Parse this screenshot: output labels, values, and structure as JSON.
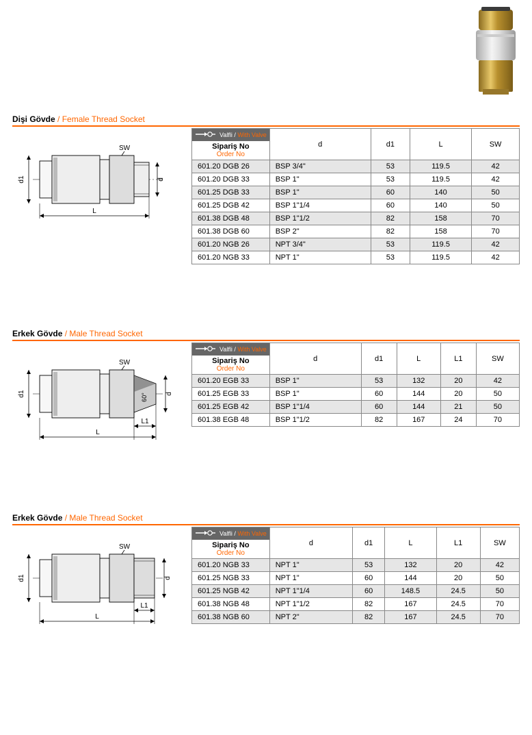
{
  "image_svg": "present",
  "sections": [
    {
      "title_tr": "Dişi Gövde",
      "title_en": "Female Thread Socket",
      "valve_label_tr": "Valfli",
      "valve_label_en": "With Valve",
      "order_label_tr": "Sipariş No",
      "order_label_en": "Order No",
      "columns": [
        "d",
        "d1",
        "L",
        "SW"
      ],
      "diagram_type": "female",
      "rows": [
        {
          "order": "601.20 DGB 26",
          "d": "BSP 3/4\"",
          "cells": [
            "53",
            "119.5",
            "42"
          ],
          "shade": true
        },
        {
          "order": "601.20 DGB 33",
          "d": "BSP 1\"",
          "cells": [
            "53",
            "119.5",
            "42"
          ],
          "shade": false
        },
        {
          "order": "601.25 DGB 33",
          "d": "BSP 1\"",
          "cells": [
            "60",
            "140",
            "50"
          ],
          "shade": true
        },
        {
          "order": "601.25 DGB 42",
          "d": "BSP 1\"1/4",
          "cells": [
            "60",
            "140",
            "50"
          ],
          "shade": false
        },
        {
          "order": "601.38 DGB 48",
          "d": "BSP 1\"1/2",
          "cells": [
            "82",
            "158",
            "70"
          ],
          "shade": true
        },
        {
          "order": "601.38 DGB 60",
          "d": "BSP 2\"",
          "cells": [
            "82",
            "158",
            "70"
          ],
          "shade": false
        },
        {
          "order": "601.20 NGB 26",
          "d": "NPT 3/4\"",
          "cells": [
            "53",
            "119.5",
            "42"
          ],
          "shade": true
        },
        {
          "order": "601.20 NGB 33",
          "d": "NPT 1\"",
          "cells": [
            "53",
            "119.5",
            "42"
          ],
          "shade": false
        }
      ]
    },
    {
      "title_tr": "Erkek Gövde",
      "title_en": "Male Thread Socket",
      "valve_label_tr": "Valfli",
      "valve_label_en": "With Valve",
      "order_label_tr": "Sipariş No",
      "order_label_en": "Order No",
      "columns": [
        "d",
        "d1",
        "L",
        "L1",
        "SW"
      ],
      "diagram_type": "male60",
      "rows": [
        {
          "order": "601.20 EGB 33",
          "d": "BSP 1\"",
          "cells": [
            "53",
            "132",
            "20",
            "42"
          ],
          "shade": true
        },
        {
          "order": "601.25 EGB 33",
          "d": "BSP 1\"",
          "cells": [
            "60",
            "144",
            "20",
            "50"
          ],
          "shade": false
        },
        {
          "order": "601.25 EGB 42",
          "d": "BSP 1\"1/4",
          "cells": [
            "60",
            "144",
            "21",
            "50"
          ],
          "shade": true
        },
        {
          "order": "601.38 EGB 48",
          "d": "BSP 1\"1/2",
          "cells": [
            "82",
            "167",
            "24",
            "70"
          ],
          "shade": false
        }
      ]
    },
    {
      "title_tr": "Erkek Gövde",
      "title_en": "Male Thread Socket",
      "valve_label_tr": "Valfli",
      "valve_label_en": "With Valve",
      "order_label_tr": "Sipariş No",
      "order_label_en": "Order No",
      "columns": [
        "d",
        "d1",
        "L",
        "L1",
        "SW"
      ],
      "diagram_type": "male",
      "rows": [
        {
          "order": "601.20 NGB 33",
          "d": "NPT 1\"",
          "cells": [
            "53",
            "132",
            "20",
            "42"
          ],
          "shade": true
        },
        {
          "order": "601.25 NGB 33",
          "d": "NPT 1\"",
          "cells": [
            "60",
            "144",
            "20",
            "50"
          ],
          "shade": false
        },
        {
          "order": "601.25 NGB 42",
          "d": "NPT 1\"1/4",
          "cells": [
            "60",
            "148.5",
            "24.5",
            "50"
          ],
          "shade": true
        },
        {
          "order": "601.38 NGB 48",
          "d": "NPT 1\"1/2",
          "cells": [
            "82",
            "167",
            "24.5",
            "70"
          ],
          "shade": false
        },
        {
          "order": "601.38 NGB 60",
          "d": "NPT 2\"",
          "cells": [
            "82",
            "167",
            "24.5",
            "70"
          ],
          "shade": true
        }
      ]
    }
  ],
  "styles": {
    "accent": "#f60",
    "header_bar_bg": "#666",
    "shade_row": "#e6e6e6",
    "border": "#888"
  }
}
